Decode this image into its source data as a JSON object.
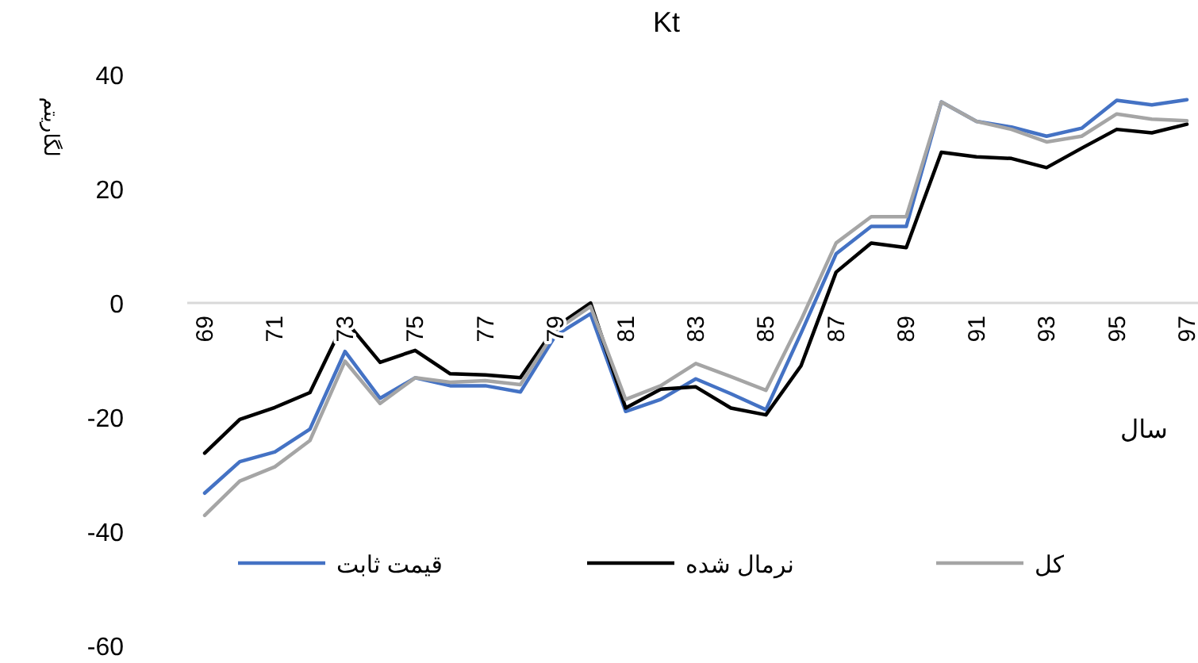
{
  "chart_data": {
    "type": "line",
    "title": "Kt",
    "xlabel": "سال",
    "ylabel": "لگاریتم",
    "categories": [
      "69",
      null,
      "71",
      null,
      "73",
      null,
      "75",
      null,
      "77",
      null,
      "79",
      null,
      "81",
      null,
      "83",
      null,
      "85",
      null,
      "87",
      null,
      "89",
      null,
      "91",
      null,
      "93",
      null,
      "95",
      null,
      "97"
    ],
    "series": [
      {
        "name": "قیمت ثابت",
        "color": "#4472c4",
        "values": [
          -33.3,
          -27.8,
          -26.1,
          -22.1,
          -8.5,
          -16.7,
          -13.1,
          -14.5,
          -14.5,
          -15.6,
          -5.7,
          -1.9,
          -19.0,
          -16.9,
          -13.3,
          -15.9,
          -18.7,
          -5.3,
          8.6,
          13.4,
          13.4,
          35.2,
          31.8,
          30.8,
          29.2,
          30.6,
          35.5,
          34.7,
          35.6
        ]
      },
      {
        "name": "نرمال شده",
        "color": "#000000",
        "values": [
          -26.3,
          -20.4,
          -18.3,
          -15.7,
          -3.0,
          -10.4,
          -8.3,
          -12.4,
          -12.6,
          -13.1,
          -4.2,
          0.0,
          -18.4,
          -15.1,
          -14.7,
          -18.4,
          -19.6,
          -11.0,
          5.4,
          10.5,
          9.7,
          26.4,
          25.6,
          25.3,
          23.7,
          27.1,
          30.4,
          29.8,
          31.3
        ]
      },
      {
        "name": "کل",
        "color": "#a5a5a5",
        "values": [
          -37.2,
          -31.2,
          -28.7,
          -24.1,
          -10.2,
          -17.6,
          -13.1,
          -13.9,
          -13.6,
          -14.3,
          -4.8,
          -0.6,
          -16.9,
          -14.5,
          -10.6,
          -12.9,
          -15.3,
          -3.0,
          10.5,
          15.1,
          15.1,
          35.2,
          31.8,
          30.4,
          28.2,
          29.2,
          33.1,
          32.2,
          31.9
        ]
      }
    ],
    "ylim": [
      -60,
      40
    ],
    "yticks": [
      -60,
      -40,
      -20,
      0,
      20,
      40
    ],
    "legend": "bottom"
  }
}
